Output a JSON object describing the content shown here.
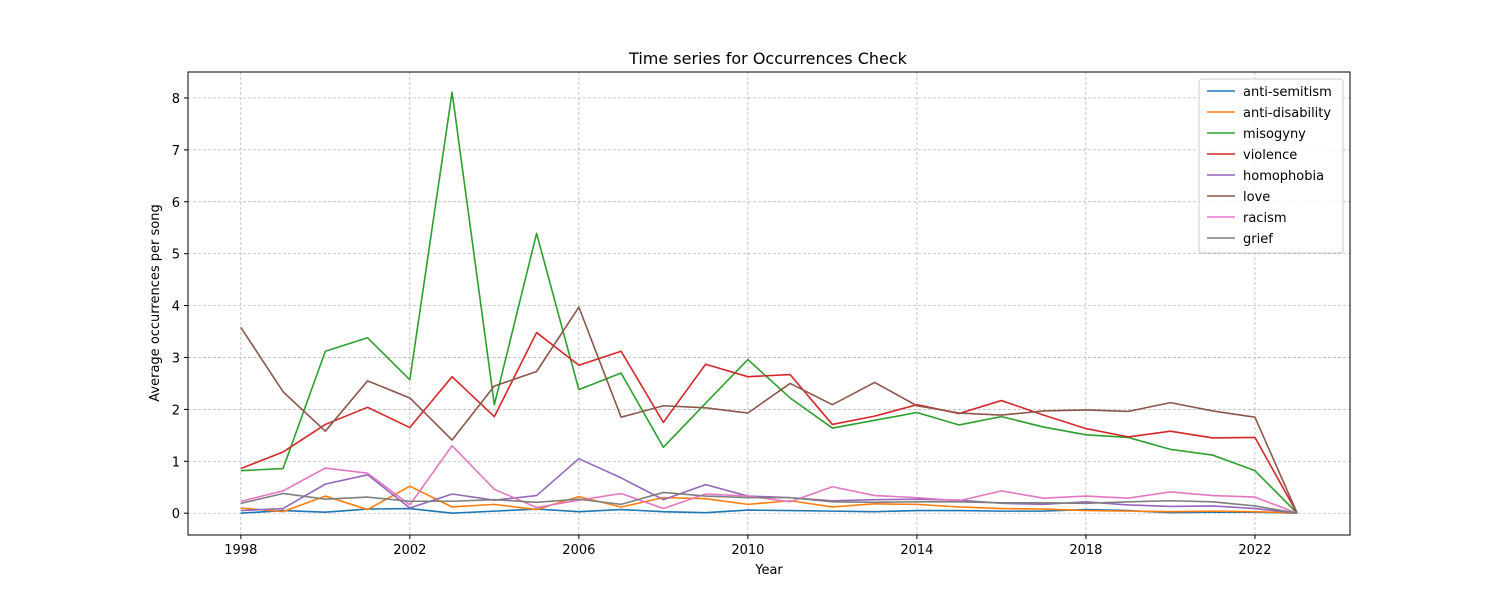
{
  "chart_data": {
    "type": "line",
    "title": "Time series for Occurrences Check",
    "xlabel": "Year",
    "ylabel": "Average occurrences per song",
    "xlim": [
      1996.75,
      2024.25
    ],
    "ylim": [
      -0.42,
      8.5
    ],
    "xticks": [
      1998,
      2002,
      2006,
      2010,
      2014,
      2018,
      2022
    ],
    "yticks": [
      0,
      1,
      2,
      3,
      4,
      5,
      6,
      7,
      8
    ],
    "grid": true,
    "legend_position": "top-right",
    "x": [
      1998,
      1999,
      2000,
      2001,
      2002,
      2003,
      2004,
      2005,
      2006,
      2007,
      2008,
      2009,
      2010,
      2011,
      2012,
      2013,
      2014,
      2015,
      2016,
      2017,
      2018,
      2019,
      2020,
      2021,
      2022,
      2023
    ],
    "series": [
      {
        "name": "anti-semitism",
        "color": "#1f77b4",
        "values": [
          0.0,
          0.05,
          0.02,
          0.08,
          0.09,
          0.0,
          0.04,
          0.08,
          0.03,
          0.07,
          0.03,
          0.01,
          0.06,
          0.05,
          0.04,
          0.03,
          0.05,
          0.05,
          0.04,
          0.04,
          0.07,
          0.05,
          0.01,
          0.02,
          0.02,
          0.0
        ]
      },
      {
        "name": "anti-disability",
        "color": "#ff7f0e",
        "values": [
          0.1,
          0.03,
          0.33,
          0.07,
          0.52,
          0.12,
          0.17,
          0.07,
          0.32,
          0.12,
          0.3,
          0.28,
          0.17,
          0.24,
          0.12,
          0.18,
          0.17,
          0.12,
          0.09,
          0.08,
          0.05,
          0.04,
          0.03,
          0.04,
          0.03,
          0.0
        ]
      },
      {
        "name": "misogyny",
        "color": "#2ca02c",
        "values": [
          0.82,
          0.86,
          3.12,
          3.38,
          2.57,
          8.11,
          2.09,
          5.39,
          2.38,
          2.7,
          1.27,
          2.12,
          2.96,
          2.22,
          1.64,
          1.79,
          1.94,
          1.7,
          1.86,
          1.66,
          1.51,
          1.46,
          1.23,
          1.12,
          0.82,
          0.0
        ]
      },
      {
        "name": "violence",
        "color": "#d62728",
        "values": [
          0.86,
          1.18,
          1.71,
          2.04,
          1.65,
          2.63,
          1.86,
          3.48,
          2.85,
          3.12,
          1.75,
          2.87,
          2.63,
          2.67,
          1.71,
          1.87,
          2.09,
          1.92,
          2.17,
          1.89,
          1.63,
          1.47,
          1.58,
          1.45,
          1.46,
          0.0
        ]
      },
      {
        "name": "homophobia",
        "color": "#9467bd",
        "values": [
          0.05,
          0.09,
          0.56,
          0.74,
          0.1,
          0.37,
          0.25,
          0.34,
          1.05,
          0.68,
          0.26,
          0.55,
          0.33,
          0.3,
          0.24,
          0.26,
          0.27,
          0.25,
          0.19,
          0.17,
          0.22,
          0.16,
          0.13,
          0.14,
          0.09,
          0.0
        ]
      },
      {
        "name": "love",
        "color": "#8c564b",
        "values": [
          3.58,
          2.34,
          1.58,
          2.55,
          2.22,
          1.41,
          2.45,
          2.73,
          3.97,
          1.85,
          2.07,
          2.03,
          1.93,
          2.5,
          2.09,
          2.52,
          2.07,
          1.93,
          1.89,
          1.97,
          1.99,
          1.96,
          2.13,
          1.97,
          1.85,
          0.0
        ]
      },
      {
        "name": "racism",
        "color": "#e377c2",
        "values": [
          0.23,
          0.43,
          0.87,
          0.77,
          0.16,
          1.3,
          0.46,
          0.11,
          0.25,
          0.38,
          0.09,
          0.37,
          0.33,
          0.22,
          0.51,
          0.34,
          0.3,
          0.24,
          0.43,
          0.29,
          0.33,
          0.29,
          0.41,
          0.34,
          0.31,
          0.0
        ]
      },
      {
        "name": "grief",
        "color": "#7f7f7f",
        "values": [
          0.19,
          0.38,
          0.27,
          0.31,
          0.23,
          0.23,
          0.26,
          0.21,
          0.27,
          0.17,
          0.4,
          0.33,
          0.3,
          0.3,
          0.22,
          0.21,
          0.22,
          0.22,
          0.2,
          0.2,
          0.19,
          0.22,
          0.24,
          0.22,
          0.14,
          0.0
        ]
      }
    ]
  }
}
